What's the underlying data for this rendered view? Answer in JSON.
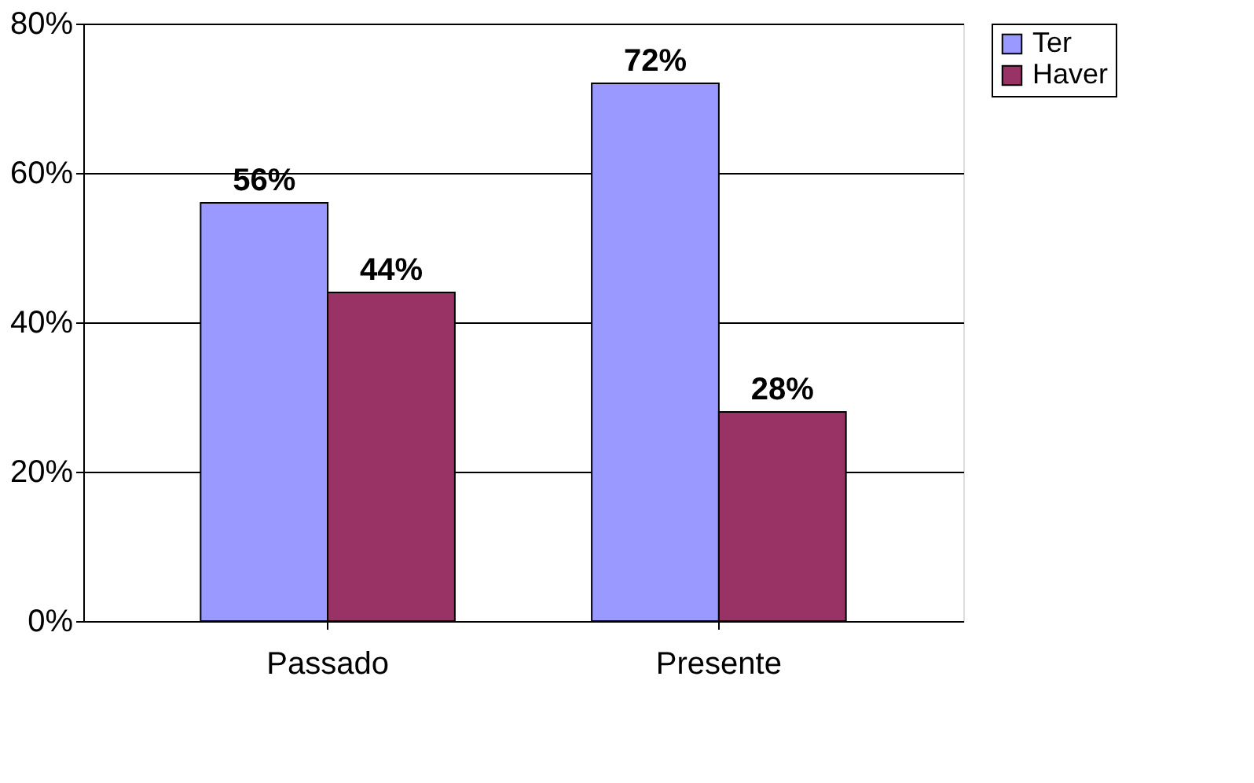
{
  "chart_data": {
    "type": "bar",
    "categories": [
      "Passado",
      "Presente"
    ],
    "series": [
      {
        "name": "Ter",
        "color": "#9999ff",
        "values": [
          56,
          72
        ],
        "value_labels": [
          "56%",
          "72%"
        ]
      },
      {
        "name": "Haver",
        "color": "#993366",
        "values": [
          44,
          28
        ],
        "value_labels": [
          "44%",
          "28%"
        ]
      }
    ],
    "ylim": [
      0,
      80
    ],
    "yticks": [
      {
        "value": 0,
        "label": "0%"
      },
      {
        "value": 20,
        "label": "20%"
      },
      {
        "value": 40,
        "label": "40%"
      },
      {
        "value": 60,
        "label": "60%"
      },
      {
        "value": 80,
        "label": "80%"
      }
    ],
    "grid": "y",
    "legend": "right"
  }
}
